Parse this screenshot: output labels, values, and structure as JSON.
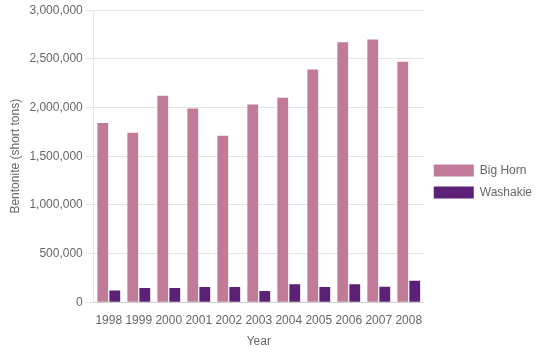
{
  "chart_data": {
    "type": "bar",
    "xlabel": "Year",
    "ylabel": "Bentonite (short tons)",
    "categories": [
      "1998",
      "1999",
      "2000",
      "2001",
      "2002",
      "2003",
      "2004",
      "2005",
      "2006",
      "2007",
      "2008"
    ],
    "series": [
      {
        "name": "Big Horn",
        "color": "#C17B98",
        "values": [
          1840000,
          1740000,
          2120000,
          1990000,
          1710000,
          2030000,
          2100000,
          2390000,
          2670000,
          2700000,
          2470000
        ]
      },
      {
        "name": "Washakie",
        "color": "#5B2176",
        "values": [
          120000,
          145000,
          145000,
          155000,
          155000,
          115000,
          185000,
          155000,
          185000,
          160000,
          220000
        ]
      }
    ],
    "ylim": [
      0,
      3000000
    ],
    "yticks": [
      0,
      {
        "value": 500000,
        "label": "500,000"
      },
      {
        "value": 1000000,
        "label": "1,000,000"
      },
      {
        "value": 1500000,
        "label": "1,500,000"
      },
      {
        "value": 2000000,
        "label": "2,000,000"
      },
      {
        "value": 2500000,
        "label": "2,500,000"
      },
      {
        "value": 3000000,
        "label": "3,000,000"
      }
    ],
    "grid": true,
    "legend": "right"
  }
}
